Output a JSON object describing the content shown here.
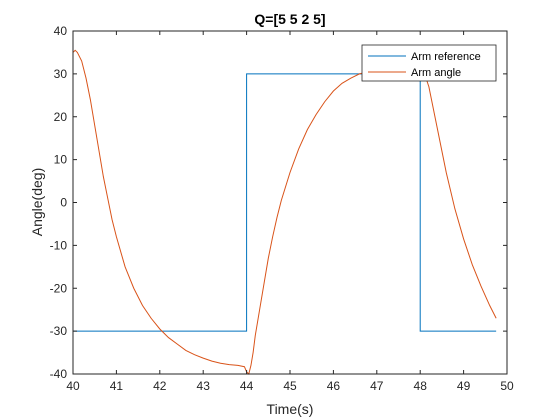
{
  "chart_data": {
    "type": "line",
    "title": "Q=[5 5 2 5]",
    "xlabel": "Time(s)",
    "ylabel": "Angle(deg)",
    "xlim": [
      40,
      50
    ],
    "ylim": [
      -40,
      40
    ],
    "xticks": [
      40,
      41,
      42,
      43,
      44,
      45,
      46,
      47,
      48,
      49,
      50
    ],
    "yticks": [
      -40,
      -30,
      -20,
      -10,
      0,
      10,
      20,
      30,
      40
    ],
    "grid": false,
    "legend_position": "top-right",
    "series": [
      {
        "name": "Arm reference",
        "color": "#0072BD",
        "x": [
          40,
          44,
          44,
          48,
          48,
          49.75
        ],
        "y": [
          -30,
          -30,
          30,
          30,
          -30,
          -30
        ]
      },
      {
        "name": "Arm angle",
        "color": "#D95319",
        "x": [
          40,
          40.05,
          40.1,
          40.2,
          40.3,
          40.4,
          40.5,
          40.6,
          40.7,
          40.8,
          40.9,
          41.0,
          41.2,
          41.4,
          41.6,
          41.8,
          42.0,
          42.2,
          42.4,
          42.6,
          42.8,
          43.0,
          43.2,
          43.4,
          43.6,
          43.8,
          43.95,
          44.0,
          44.05,
          44.1,
          44.15,
          44.2,
          44.3,
          44.4,
          44.5,
          44.6,
          44.7,
          44.8,
          45.0,
          45.2,
          45.4,
          45.6,
          45.8,
          46.0,
          46.2,
          46.4,
          46.6,
          46.8,
          47.0,
          47.2,
          47.4,
          47.6,
          47.8,
          48.0,
          48.05,
          48.1,
          48.2,
          48.4,
          48.6,
          48.8,
          49.0,
          49.2,
          49.4,
          49.6,
          49.75
        ],
        "y": [
          35,
          35.5,
          35,
          33,
          29,
          24,
          18,
          12,
          6,
          1,
          -4,
          -8,
          -15,
          -20,
          -24,
          -27,
          -29.5,
          -31.5,
          -33,
          -34.5,
          -35.5,
          -36.3,
          -37,
          -37.5,
          -37.8,
          -38,
          -38.3,
          -39.5,
          -40,
          -38,
          -35,
          -31,
          -25,
          -19,
          -13,
          -8,
          -3.5,
          0.5,
          7,
          12.5,
          17,
          20.5,
          23.5,
          26,
          27.8,
          29,
          30,
          30.5,
          31,
          31.3,
          31.5,
          31.7,
          32,
          32.3,
          31.5,
          30,
          27,
          17,
          7,
          -1.5,
          -8.5,
          -14.5,
          -19.5,
          -24,
          -27
        ]
      }
    ]
  }
}
